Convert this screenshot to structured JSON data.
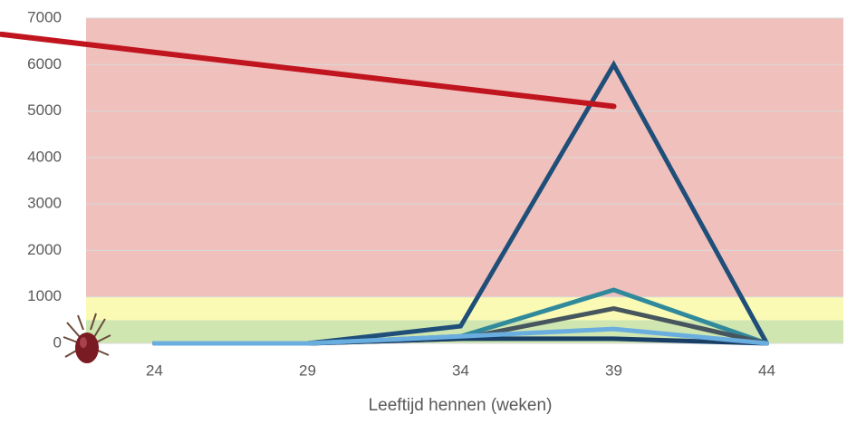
{
  "chart_data": {
    "type": "line",
    "x_label": "Leeftijd hennen (weken)",
    "x": [
      24,
      29,
      34,
      39,
      44
    ],
    "xlim": [
      21.5,
      46.5
    ],
    "xticks": [
      24,
      29,
      34,
      39,
      44
    ],
    "ylim": [
      0,
      7000
    ],
    "yticks": [
      0,
      1000,
      2000,
      3000,
      4000,
      5000,
      6000,
      7000
    ],
    "grid": true,
    "zones": [
      {
        "from": 0,
        "to": 500,
        "color": "#cfe6b0"
      },
      {
        "from": 500,
        "to": 1000,
        "color": "#fafab4"
      },
      {
        "from": 1000,
        "to": 7000,
        "color": "#f0c0bc"
      }
    ],
    "series": [
      {
        "color": "#1f4e79",
        "values": [
          0,
          0,
          370,
          6000,
          0
        ]
      },
      {
        "color": "#31899c",
        "values": [
          0,
          0,
          150,
          1150,
          0
        ]
      },
      {
        "color": "#46555e",
        "values": [
          0,
          0,
          100,
          750,
          0
        ]
      },
      {
        "color": "#1a3f66",
        "values": [
          0,
          0,
          100,
          100,
          0
        ]
      },
      {
        "color": "#6aaee0",
        "values": [
          0,
          0,
          150,
          310,
          0
        ]
      }
    ],
    "trend": {
      "color": "#c0141e",
      "x": [
        19,
        39
      ],
      "values": [
        6650,
        5100
      ]
    }
  }
}
